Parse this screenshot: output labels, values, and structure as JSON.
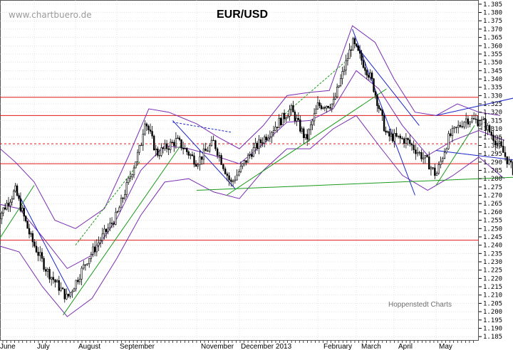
{
  "watermark": "www.chartbuero.de",
  "credit": "Hoppenstedt Charts",
  "colors": {
    "price": "#000000",
    "bollinger": "#7a2db0",
    "horizontal": "#e11919",
    "trend": "#1a9a1a",
    "channel": "#1a24c8",
    "grid": "#c8c8c8"
  },
  "chart_data": {
    "type": "candlestick",
    "title": "EUR/USD",
    "ylim": [
      1.18,
      1.385
    ],
    "ylabel_side": "right",
    "y_ticks": [
      "1.385",
      "1.380",
      "1.375",
      "1.370",
      "1.365",
      "1.360",
      "1.355",
      "1.350",
      "1.345",
      "1.340",
      "1.335",
      "1.330",
      "1.325",
      "1.320",
      "1.315",
      "1.310",
      "1.305",
      "1.300",
      "1.295",
      "1.290",
      "1.285",
      "1.280",
      "1.275",
      "1.270",
      "1.265",
      "1.260",
      "1.255",
      "1.250",
      "1.245",
      "1.240",
      "1.235",
      "1.230",
      "1.225",
      "1.220",
      "1.215",
      "1.210",
      "1.205",
      "1.200",
      "1.195",
      "1.190",
      "1.185"
    ],
    "x_labels": [
      "June",
      "July",
      "August",
      "September",
      "November",
      "December 2013",
      "February",
      "March",
      "April",
      "May"
    ],
    "grid": true,
    "horizontal_levels": [
      {
        "value": 1.329,
        "style": "solid"
      },
      {
        "value": 1.318,
        "style": "solid"
      },
      {
        "value": 1.301,
        "style": "dashed"
      },
      {
        "value": 1.289,
        "style": "solid"
      },
      {
        "value": 1.243,
        "style": "solid"
      }
    ],
    "price_path": [
      {
        "m": 0.0,
        "v": 1.255
      },
      {
        "m": 0.5,
        "v": 1.273
      },
      {
        "m": 0.9,
        "v": 1.245
      },
      {
        "m": 1.3,
        "v": 1.225
      },
      {
        "m": 1.8,
        "v": 1.208
      },
      {
        "m": 2.3,
        "v": 1.232
      },
      {
        "m": 3.0,
        "v": 1.258
      },
      {
        "m": 3.6,
        "v": 1.3
      },
      {
        "m": 3.7,
        "v": 1.316
      },
      {
        "m": 4.0,
        "v": 1.295
      },
      {
        "m": 4.5,
        "v": 1.303
      },
      {
        "m": 5.0,
        "v": 1.29
      },
      {
        "m": 5.4,
        "v": 1.302
      },
      {
        "m": 5.8,
        "v": 1.277
      },
      {
        "m": 6.3,
        "v": 1.296
      },
      {
        "m": 6.8,
        "v": 1.309
      },
      {
        "m": 7.3,
        "v": 1.322
      },
      {
        "m": 7.7,
        "v": 1.303
      },
      {
        "m": 8.0,
        "v": 1.324
      },
      {
        "m": 8.4,
        "v": 1.325
      },
      {
        "m": 8.9,
        "v": 1.362
      },
      {
        "m": 9.4,
        "v": 1.34
      },
      {
        "m": 9.8,
        "v": 1.306
      },
      {
        "m": 10.3,
        "v": 1.303
      },
      {
        "m": 10.8,
        "v": 1.29
      },
      {
        "m": 11.0,
        "v": 1.282
      },
      {
        "m": 11.3,
        "v": 1.305
      },
      {
        "m": 11.7,
        "v": 1.316
      },
      {
        "m": 12.1,
        "v": 1.314
      },
      {
        "m": 12.5,
        "v": 1.299
      },
      {
        "m": 12.8,
        "v": 1.285
      }
    ],
    "series": [
      {
        "name": "",
        "role": "upper band",
        "style": "solid",
        "points": [
          {
            "m": 0.0,
            "v": 1.3
          },
          {
            "m": 0.5,
            "v": 1.29
          },
          {
            "m": 1.0,
            "v": 1.278
          },
          {
            "m": 1.5,
            "v": 1.255
          },
          {
            "m": 2.0,
            "v": 1.25
          },
          {
            "m": 2.7,
            "v": 1.262
          },
          {
            "m": 3.3,
            "v": 1.294
          },
          {
            "m": 3.8,
            "v": 1.322
          },
          {
            "m": 4.3,
            "v": 1.32
          },
          {
            "m": 5.0,
            "v": 1.313
          },
          {
            "m": 5.5,
            "v": 1.305
          },
          {
            "m": 6.0,
            "v": 1.298
          },
          {
            "m": 6.6,
            "v": 1.312
          },
          {
            "m": 7.2,
            "v": 1.33
          },
          {
            "m": 7.8,
            "v": 1.332
          },
          {
            "m": 8.3,
            "v": 1.333
          },
          {
            "m": 8.9,
            "v": 1.372
          },
          {
            "m": 9.5,
            "v": 1.362
          },
          {
            "m": 10.0,
            "v": 1.34
          },
          {
            "m": 10.5,
            "v": 1.32
          },
          {
            "m": 11.0,
            "v": 1.318
          },
          {
            "m": 11.5,
            "v": 1.325
          },
          {
            "m": 12.0,
            "v": 1.32
          },
          {
            "m": 12.5,
            "v": 1.318
          }
        ]
      },
      {
        "name": "",
        "role": "middle band",
        "style": "solid",
        "points": [
          {
            "m": 0.0,
            "v": 1.265
          },
          {
            "m": 0.6,
            "v": 1.262
          },
          {
            "m": 1.2,
            "v": 1.245
          },
          {
            "m": 1.8,
            "v": 1.226
          },
          {
            "m": 2.4,
            "v": 1.234
          },
          {
            "m": 3.0,
            "v": 1.256
          },
          {
            "m": 3.6,
            "v": 1.285
          },
          {
            "m": 4.2,
            "v": 1.3
          },
          {
            "m": 4.8,
            "v": 1.298
          },
          {
            "m": 5.4,
            "v": 1.294
          },
          {
            "m": 6.0,
            "v": 1.289
          },
          {
            "m": 6.6,
            "v": 1.301
          },
          {
            "m": 7.2,
            "v": 1.314
          },
          {
            "m": 7.8,
            "v": 1.315
          },
          {
            "m": 8.4,
            "v": 1.322
          },
          {
            "m": 9.0,
            "v": 1.345
          },
          {
            "m": 9.6,
            "v": 1.334
          },
          {
            "m": 10.2,
            "v": 1.312
          },
          {
            "m": 10.8,
            "v": 1.294
          },
          {
            "m": 11.4,
            "v": 1.303
          },
          {
            "m": 12.0,
            "v": 1.309
          },
          {
            "m": 12.6,
            "v": 1.303
          }
        ]
      },
      {
        "name": "",
        "role": "lower band",
        "style": "solid",
        "points": [
          {
            "m": 0.0,
            "v": 1.24
          },
          {
            "m": 0.6,
            "v": 1.236
          },
          {
            "m": 1.2,
            "v": 1.215
          },
          {
            "m": 1.8,
            "v": 1.197
          },
          {
            "m": 2.4,
            "v": 1.208
          },
          {
            "m": 3.0,
            "v": 1.232
          },
          {
            "m": 3.6,
            "v": 1.258
          },
          {
            "m": 4.2,
            "v": 1.278
          },
          {
            "m": 4.8,
            "v": 1.28
          },
          {
            "m": 5.4,
            "v": 1.272
          },
          {
            "m": 6.0,
            "v": 1.268
          },
          {
            "m": 6.6,
            "v": 1.285
          },
          {
            "m": 7.2,
            "v": 1.298
          },
          {
            "m": 7.8,
            "v": 1.298
          },
          {
            "m": 8.4,
            "v": 1.31
          },
          {
            "m": 9.0,
            "v": 1.318
          },
          {
            "m": 9.6,
            "v": 1.3
          },
          {
            "m": 10.2,
            "v": 1.282
          },
          {
            "m": 10.8,
            "v": 1.273
          },
          {
            "m": 11.4,
            "v": 1.282
          },
          {
            "m": 12.0,
            "v": 1.293
          },
          {
            "m": 12.6,
            "v": 1.28
          }
        ]
      },
      {
        "name": "",
        "role": "long-term support",
        "style": "solid",
        "points": [
          {
            "m": 5.0,
            "v": 1.273
          },
          {
            "m": 13.0,
            "v": 1.281
          }
        ]
      },
      {
        "name": "",
        "role": "uptrend A",
        "style": "solid",
        "points": [
          {
            "m": 0.0,
            "v": 1.241
          },
          {
            "m": 1.0,
            "v": 1.276
          }
        ]
      },
      {
        "name": "",
        "role": "uptrend B",
        "style": "solid",
        "points": [
          {
            "m": 1.7,
            "v": 1.198
          },
          {
            "m": 4.6,
            "v": 1.3
          }
        ]
      },
      {
        "name": "",
        "role": "uptrend C",
        "style": "solid",
        "points": [
          {
            "m": 5.7,
            "v": 1.27
          },
          {
            "m": 9.8,
            "v": 1.334
          }
        ]
      },
      {
        "name": "",
        "role": "uptrend D",
        "style": "solid",
        "points": [
          {
            "m": 11.0,
            "v": 1.276
          },
          {
            "m": 11.9,
            "v": 1.312
          }
        ]
      },
      {
        "name": "",
        "role": "uptrend B extension",
        "style": "dashed",
        "points": [
          {
            "m": 2.0,
            "v": 1.24
          },
          {
            "m": 3.6,
            "v": 1.291
          }
        ]
      },
      {
        "name": "",
        "role": "uptrend C extension",
        "style": "dashed",
        "points": [
          {
            "m": 7.0,
            "v": 1.316
          },
          {
            "m": 8.7,
            "v": 1.35
          }
        ]
      },
      {
        "name": "",
        "role": "downtrend July",
        "style": "solid",
        "points": [
          {
            "m": 0.6,
            "v": 1.27
          },
          {
            "m": 1.9,
            "v": 1.21
          }
        ]
      },
      {
        "name": "",
        "role": "downtrend Sep-Oct",
        "style": "solid",
        "points": [
          {
            "m": 4.4,
            "v": 1.315
          },
          {
            "m": 5.9,
            "v": 1.274
          }
        ]
      },
      {
        "name": "",
        "role": "downtrend Sep-Oct dashed",
        "style": "dashed",
        "points": [
          {
            "m": 4.4,
            "v": 1.314
          },
          {
            "m": 5.8,
            "v": 1.308
          }
        ]
      },
      {
        "name": "",
        "role": "downtrend Feb-Mar",
        "style": "solid",
        "points": [
          {
            "m": 8.9,
            "v": 1.37
          },
          {
            "m": 10.5,
            "v": 1.27
          }
        ]
      },
      {
        "name": "",
        "role": "downtrend Feb-Mar 2",
        "style": "solid",
        "points": [
          {
            "m": 9.0,
            "v": 1.36
          },
          {
            "m": 10.6,
            "v": 1.312
          }
        ]
      },
      {
        "name": "",
        "role": "May channel top",
        "style": "solid",
        "points": [
          {
            "m": 11.0,
            "v": 1.318
          },
          {
            "m": 12.9,
            "v": 1.329
          }
        ]
      },
      {
        "name": "",
        "role": "May channel bottom",
        "style": "solid",
        "points": [
          {
            "m": 11.0,
            "v": 1.297
          },
          {
            "m": 12.9,
            "v": 1.291
          }
        ]
      }
    ]
  }
}
